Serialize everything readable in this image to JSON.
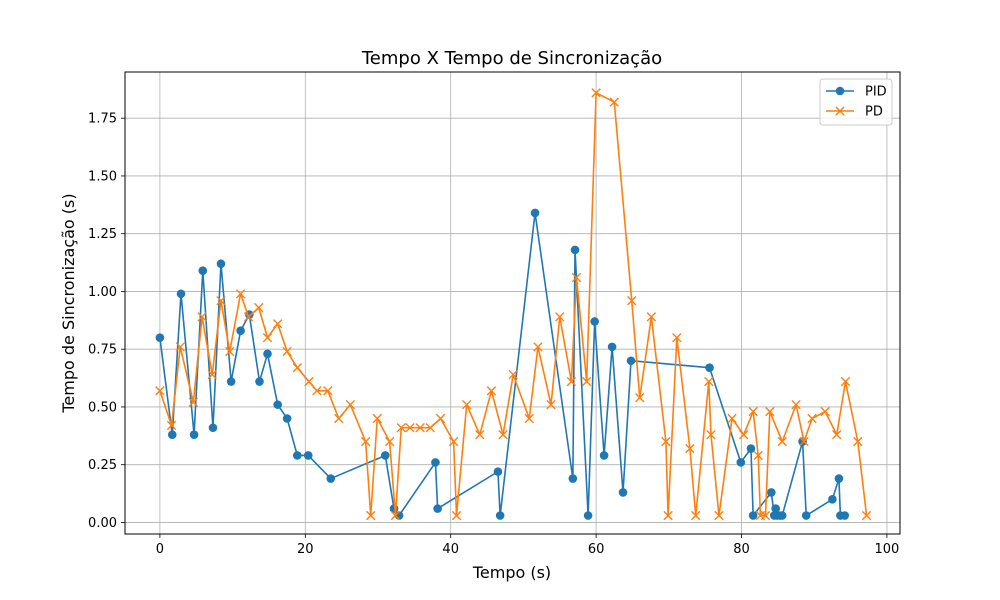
{
  "chart_data": {
    "type": "line",
    "title": "Tempo X Tempo de Sincronização",
    "xlabel": "Tempo (s)",
    "ylabel": "Tempo de Sincronização (s)",
    "xlim": [
      -4.8,
      101.8
    ],
    "ylim": [
      -0.05,
      1.95
    ],
    "xticks": [
      0,
      20,
      40,
      60,
      80,
      100
    ],
    "xtick_labels": [
      "0",
      "20",
      "40",
      "60",
      "80",
      "100"
    ],
    "yticks": [
      0.0,
      0.25,
      0.5,
      0.75,
      1.0,
      1.25,
      1.5,
      1.75
    ],
    "ytick_labels": [
      "0.00",
      "0.25",
      "0.50",
      "0.75",
      "1.00",
      "1.25",
      "1.50",
      "1.75"
    ],
    "grid": true,
    "legend_position": "top-right",
    "series": [
      {
        "name": "PID",
        "color": "#1f77b4",
        "marker": "circle",
        "x": [
          0.0,
          1.7,
          2.9,
          4.7,
          5.9,
          7.3,
          8.4,
          9.8,
          11.1,
          12.3,
          13.7,
          14.8,
          16.2,
          17.5,
          18.9,
          20.4,
          23.5,
          31.0,
          32.2,
          32.9,
          37.9,
          38.2,
          46.5,
          46.8,
          51.6,
          56.8,
          57.1,
          58.9,
          59.8,
          61.1,
          62.2,
          63.7,
          64.8,
          75.6,
          79.9,
          81.3,
          81.6,
          84.1,
          84.5,
          84.7,
          84.9,
          85.3,
          85.6,
          88.4,
          88.9,
          92.5,
          93.4,
          93.6,
          94.2
        ],
        "y": [
          0.8,
          0.38,
          0.99,
          0.38,
          1.09,
          0.41,
          1.12,
          0.61,
          0.83,
          0.9,
          0.61,
          0.73,
          0.51,
          0.45,
          0.29,
          0.29,
          0.19,
          0.29,
          0.06,
          0.03,
          0.26,
          0.06,
          0.22,
          0.03,
          1.34,
          0.19,
          1.18,
          0.03,
          0.87,
          0.29,
          0.76,
          0.13,
          0.7,
          0.67,
          0.26,
          0.32,
          0.03,
          0.13,
          0.03,
          0.06,
          0.03,
          0.03,
          0.03,
          0.35,
          0.03,
          0.1,
          0.19,
          0.03,
          0.03
        ]
      },
      {
        "name": "PD",
        "color": "#ff7f0e",
        "marker": "x",
        "x": [
          0.0,
          1.6,
          2.8,
          4.6,
          5.8,
          7.2,
          8.4,
          9.6,
          11.1,
          12.2,
          13.6,
          14.8,
          16.2,
          17.5,
          18.9,
          20.5,
          21.6,
          23.1,
          24.6,
          26.2,
          28.3,
          29.0,
          29.9,
          31.6,
          32.4,
          33.2,
          34.4,
          35.8,
          37.2,
          38.6,
          40.4,
          40.8,
          42.2,
          44.0,
          45.6,
          47.2,
          48.6,
          50.8,
          52.0,
          53.8,
          55.0,
          56.6,
          57.3,
          58.7,
          60.0,
          62.5,
          64.9,
          66.0,
          67.6,
          69.6,
          69.9,
          71.1,
          72.9,
          73.7,
          75.5,
          75.8,
          76.9,
          78.7,
          80.3,
          81.6,
          82.3,
          82.6,
          83.3,
          83.9,
          85.6,
          87.5,
          88.6,
          89.7,
          91.5,
          93.1,
          94.3,
          96.0,
          97.2
        ],
        "y": [
          0.57,
          0.42,
          0.76,
          0.52,
          0.89,
          0.64,
          0.96,
          0.74,
          0.99,
          0.89,
          0.93,
          0.8,
          0.86,
          0.74,
          0.67,
          0.61,
          0.57,
          0.57,
          0.45,
          0.51,
          0.35,
          0.03,
          0.45,
          0.35,
          0.03,
          0.41,
          0.41,
          0.41,
          0.41,
          0.45,
          0.35,
          0.03,
          0.51,
          0.38,
          0.57,
          0.38,
          0.64,
          0.45,
          0.76,
          0.51,
          0.89,
          0.61,
          1.06,
          0.61,
          1.86,
          1.82,
          0.96,
          0.54,
          0.89,
          0.35,
          0.03,
          0.8,
          0.32,
          0.03,
          0.61,
          0.38,
          0.03,
          0.45,
          0.38,
          0.48,
          0.29,
          0.03,
          0.03,
          0.48,
          0.35,
          0.51,
          0.35,
          0.45,
          0.48,
          0.38,
          0.61,
          0.35,
          0.03
        ]
      }
    ]
  }
}
